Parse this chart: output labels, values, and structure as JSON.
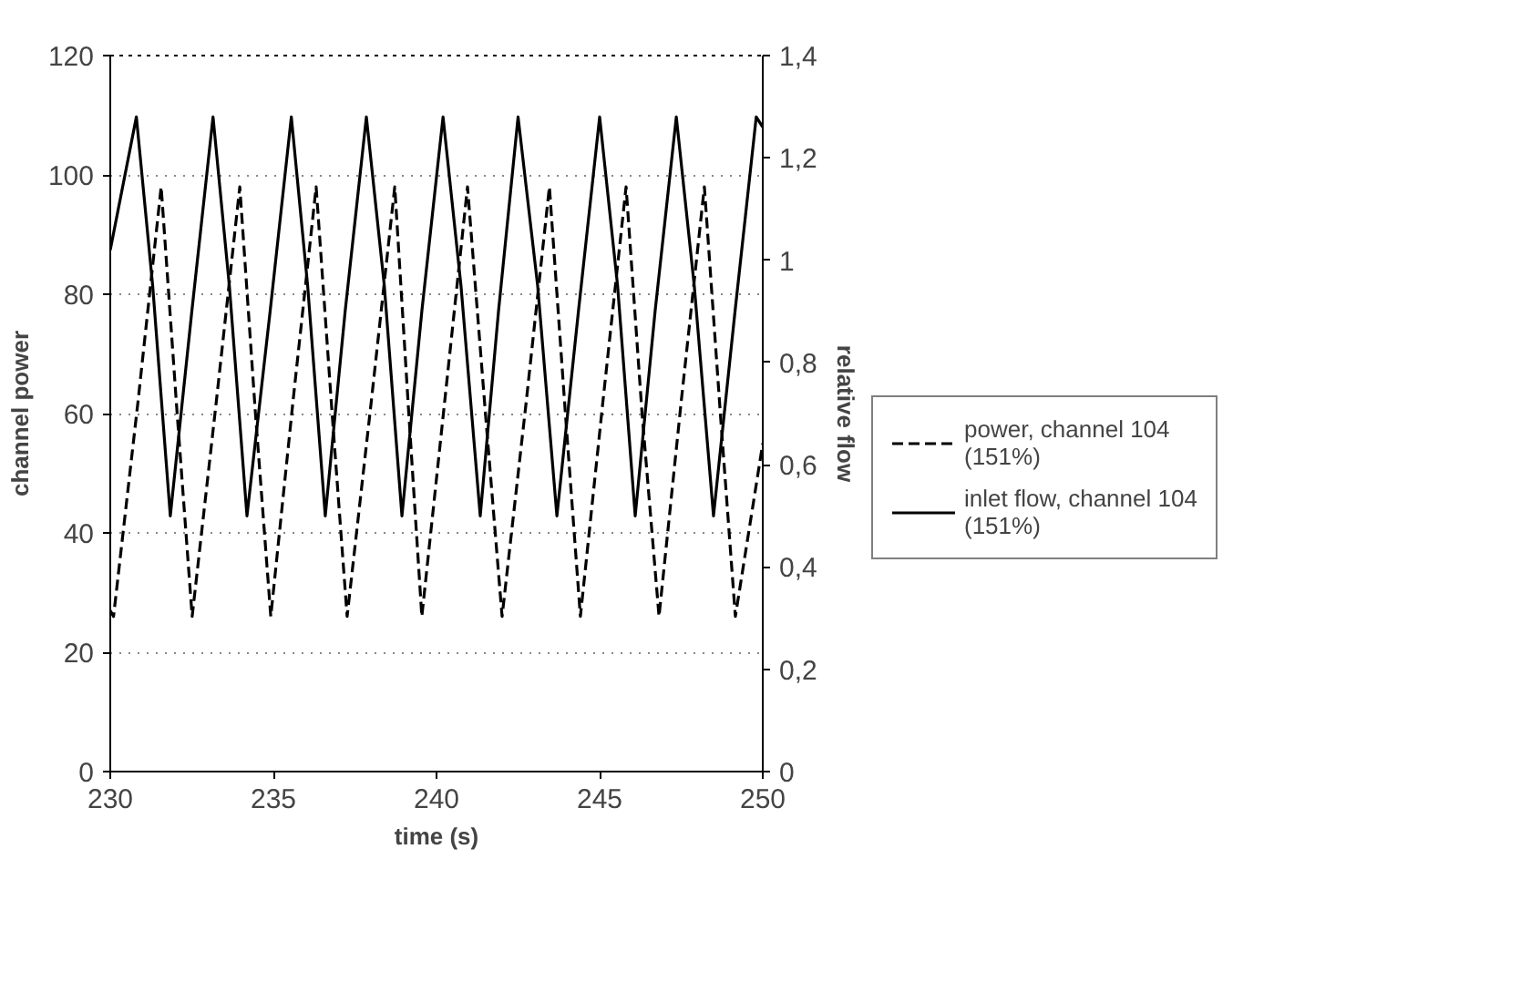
{
  "chart_data": {
    "type": "line",
    "xlabel": "time (s)",
    "ylabel": "channel power",
    "y2label": "relative flow",
    "xlim": [
      230,
      250
    ],
    "xticks": [
      230,
      235,
      240,
      245,
      250
    ],
    "ylim": [
      0,
      120
    ],
    "yticks": [
      0,
      20,
      40,
      60,
      80,
      100,
      120
    ],
    "y2lim": [
      0,
      1.4
    ],
    "y2ticks": [
      0,
      {
        "value": 0.2,
        "label": "0,2"
      },
      {
        "value": 0.4,
        "label": "0,4"
      },
      {
        "value": 0.6,
        "label": "0,6"
      },
      {
        "value": 0.8,
        "label": "0,8"
      },
      1,
      {
        "value": 1.2,
        "label": "1,2"
      },
      {
        "value": 1.4,
        "label": "1,4"
      }
    ],
    "grid": "y",
    "legend": "right",
    "marker": "none",
    "series": [
      {
        "name": "power, channel 104\n(151%)",
        "color": "#000000",
        "line_style": "dashed",
        "x": [
          230.0,
          230.1,
          230.85,
          231.56,
          232.05,
          232.51,
          233.25,
          233.97,
          234.45,
          234.92,
          235.6,
          236.31,
          236.8,
          237.26,
          238.0,
          238.72,
          239.15,
          239.55,
          240.25,
          240.95,
          241.5,
          242.01,
          242.75,
          243.46,
          243.95,
          244.41,
          245.1,
          245.81,
          246.3,
          246.82,
          247.5,
          248.21,
          248.7,
          249.16,
          250.0
        ],
        "values": [
          27,
          26,
          62,
          98,
          60,
          26,
          62,
          98,
          60,
          26,
          62,
          98,
          60,
          26,
          62,
          98,
          60,
          26,
          62,
          98,
          60,
          26,
          62,
          98,
          60,
          26,
          62,
          98,
          60,
          26,
          62,
          98,
          60,
          26,
          55
        ]
      },
      {
        "name": "inlet flow, channel 104\n(151%)",
        "color": "#000000",
        "line_style": "solid",
        "axis": "y2",
        "x": [
          230.0,
          230.8,
          231.3,
          231.84,
          232.5,
          233.15,
          233.65,
          234.19,
          234.9,
          235.55,
          236.05,
          236.59,
          237.2,
          237.85,
          238.4,
          238.94,
          239.55,
          240.2,
          240.75,
          241.34,
          241.9,
          242.5,
          243.1,
          243.69,
          244.35,
          245.0,
          245.55,
          246.09,
          246.7,
          247.35,
          247.9,
          248.49,
          249.15,
          249.8,
          250.0
        ],
        "values": [
          1.02,
          1.28,
          0.95,
          0.5,
          0.9,
          1.28,
          0.95,
          0.5,
          0.9,
          1.28,
          0.95,
          0.5,
          0.9,
          1.28,
          0.95,
          0.5,
          0.9,
          1.28,
          0.95,
          0.5,
          0.9,
          1.28,
          0.95,
          0.5,
          0.9,
          1.28,
          0.95,
          0.5,
          0.9,
          1.28,
          0.95,
          0.5,
          0.9,
          1.28,
          1.26
        ]
      }
    ]
  }
}
